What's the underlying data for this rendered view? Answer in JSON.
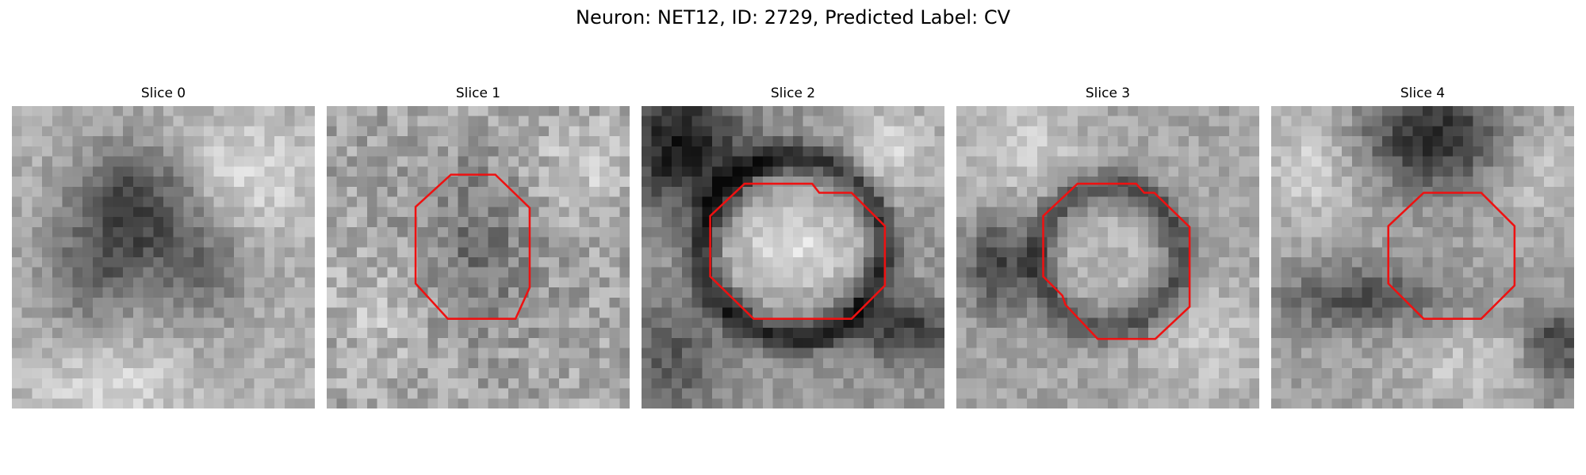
{
  "figure": {
    "title": "Neuron: NET12, ID: 2729, Predicted Label: CV",
    "contour_color": "#ee1111"
  },
  "panels": [
    {
      "title": "Slice 0",
      "has_contour": false
    },
    {
      "title": "Slice 1",
      "has_contour": true
    },
    {
      "title": "Slice 2",
      "has_contour": true
    },
    {
      "title": "Slice 3",
      "has_contour": true
    },
    {
      "title": "Slice 4",
      "has_contour": true
    }
  ]
}
